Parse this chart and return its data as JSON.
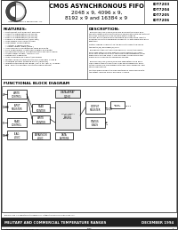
{
  "bg_color": "#ffffff",
  "border_color": "#333333",
  "title_header": "CMOS ASYNCHRONOUS FIFO",
  "subtitle1": "2048 x 9, 4096 x 9,",
  "subtitle2": "8192 x 9 and 16384 x 9",
  "part_numbers": [
    "IDT7203",
    "IDT7204",
    "IDT7205",
    "IDT7206"
  ],
  "logo_sub": "Integrated Device Technology, Inc.",
  "features_title": "FEATURES:",
  "features": [
    "First-In/First-Out Dual-Port memory",
    "2048 x 9 organization (IDT7203)",
    "4096 x 9 organization (IDT7204)",
    "8192 x 9 organization (IDT7205)",
    "16384 x 9 organization (IDT7206)",
    "High-speed: 50ns access time",
    "Low power consumption:",
    "  — Active: 175mW (max.)",
    "  — Power-down: 5mW (max.)",
    "Asynchronous simultaneous read and write",
    "Fully expandable in both word depth and width",
    "Pin and functionally compatible with IDT7200 family",
    "Status Flags: Empty, Half-Full, Full",
    "Retransmit capability",
    "High-performance CMOS technology",
    "Military product compliant to MIL-STD-883, Class B",
    "Standard Military Drawing exists (IDT7204)",
    "Industrial temperature range (-40°C to +85°C) is avail-",
    "  able. Select in Military electrical specifications."
  ],
  "description_title": "DESCRIPTION:",
  "description_lines": [
    "The IDT7203/7204/7205/7206 are dual-port memory buff-",
    "ers with internal pointers that load and Empty-Data-out without",
    "any bias. The device uses Full and Empty flags to",
    "prevent data overflow and underflow and expansion logic to",
    "allow for unlimited expansion capability in both word and word",
    "directions.",
    "",
    "Data is loaded in and out of the device through the use of",
    "the Write-/W/ and Read (R) pins.",
    "",
    "The devices transmit provides and error correction parity-",
    "arity uses option in also features a Retransmit (RT) capa-",
    "bility that allows the serial contents to be restored to initial",
    "when RT is pulsed LOW. A Half-Full flag is available in the",
    "single device and multi-expansion modes.",
    "",
    "The IDT7203/7204/7205/7206 are fabricated using IDT's",
    "high-speed CMOS technology. They are designed for appli-",
    "cations requiring high-speed data flow, local buffering, and",
    "other applications.",
    "",
    "Military grade product is manufactured in compliance with",
    "the latest revision of MIL-STD-883, Class B."
  ],
  "fbd_title": "FUNCTIONAL BLOCK DIAGRAM",
  "footer_left": "MILITARY AND COMMERCIAL TEMPERATURE RANGES",
  "footer_right": "DECEMBER 1994",
  "footer_copy": "Integrated Device Technology, Inc.",
  "footer_note": "The IDT logo is a registered trademark of Integrated Device Technology, Inc.",
  "page_num": "1"
}
